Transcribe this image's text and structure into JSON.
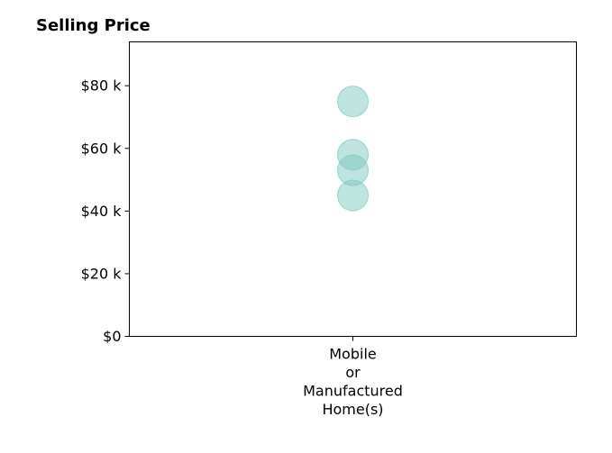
{
  "chart_data": {
    "type": "scatter",
    "title": "Selling Price",
    "xlabel": "",
    "ylabel": "",
    "categories": [
      "Mobile\nor\nManufactured\nHome(s)"
    ],
    "yticks": [
      {
        "value": 0,
        "label": "$0"
      },
      {
        "value": 20000,
        "label": "$20 k"
      },
      {
        "value": 40000,
        "label": "$40 k"
      },
      {
        "value": 60000,
        "label": "$60 k"
      },
      {
        "value": 80000,
        "label": "$80 k"
      }
    ],
    "ylim": [
      0,
      94000
    ],
    "grid": false,
    "series": [
      {
        "color": "#7fc7c0",
        "points": [
          {
            "category": "Mobile\nor\nManufactured\nHome(s)",
            "value": 75000
          },
          {
            "category": "Mobile\nor\nManufactured\nHome(s)",
            "value": 58000
          },
          {
            "category": "Mobile\nor\nManufactured\nHome(s)",
            "value": 53000
          },
          {
            "category": "Mobile\nor\nManufactured\nHome(s)",
            "value": 45000
          }
        ]
      }
    ]
  }
}
